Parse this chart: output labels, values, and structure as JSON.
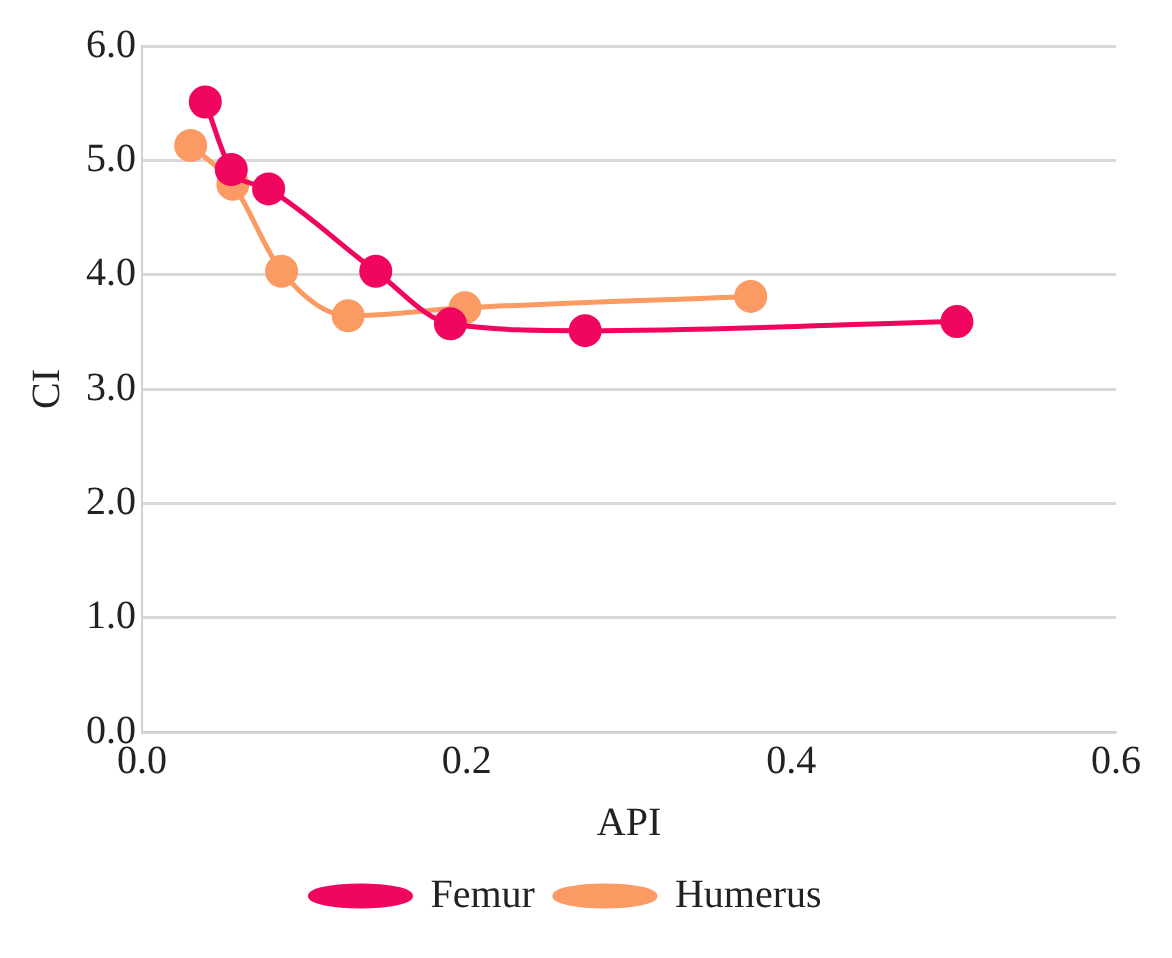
{
  "chart_data": {
    "type": "line",
    "xlabel": "API",
    "ylabel": "CI",
    "xlim": [
      0,
      0.6
    ],
    "xticks": [
      {
        "value": 0,
        "label": "0.0"
      },
      {
        "value": 0.2,
        "label": "0.2"
      },
      {
        "value": 0.4,
        "label": "0.4"
      },
      {
        "value": 0.6,
        "label": "0.6"
      }
    ],
    "ylim": [
      0,
      6
    ],
    "yticks": [
      {
        "value": 0,
        "label": "0.0"
      },
      {
        "value": 1,
        "label": "1.0"
      },
      {
        "value": 2,
        "label": "2.0"
      },
      {
        "value": 3,
        "label": "3.0"
      },
      {
        "value": 4,
        "label": "4.0"
      },
      {
        "value": 5,
        "label": "5.0"
      },
      {
        "value": 6,
        "label": "6.0"
      }
    ],
    "grid": "y",
    "legend": "bottom",
    "marker": "circle",
    "line_style": "solid",
    "series": [
      {
        "name": "Femur",
        "color": "#f0055f",
        "x": [
          0.039,
          0.055,
          0.078,
          0.144,
          0.19,
          0.273,
          0.502
        ],
        "values": [
          5.51,
          4.92,
          4.75,
          4.03,
          3.57,
          3.51,
          3.59
        ]
      },
      {
        "name": "Humerus",
        "color": "#fb9a62",
        "x": [
          0.03,
          0.056,
          0.086,
          0.127,
          0.199,
          0.375
        ],
        "values": [
          5.13,
          4.79,
          4.03,
          3.64,
          3.71,
          3.81
        ]
      }
    ]
  }
}
